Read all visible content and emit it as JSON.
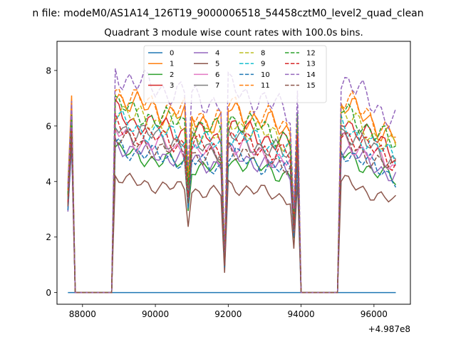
{
  "chart_data": {
    "type": "line",
    "suptitle": "n file: modeM0/AS1A14_126T19_9000006518_54458cztM0_level2_quad_clean",
    "title": "Quadrant 3 module wise count rates with 100.0s bins.",
    "xlabel": "",
    "ylabel": "",
    "x_offset_label": "+4.987e8",
    "xlim": [
      87300,
      97000
    ],
    "ylim": [
      -0.42,
      9.05
    ],
    "xticks": [
      88000,
      90000,
      92000,
      94000,
      96000
    ],
    "yticks": [
      0,
      2,
      4,
      6,
      8
    ],
    "grid": false,
    "legend": {
      "placement": "top-center",
      "ncol": 4
    },
    "x": {
      "start": 87600,
      "step": 100,
      "count": 91
    },
    "series": [
      {
        "name": "0",
        "color": "#1f77b4",
        "dash": "solid",
        "base": 0,
        "pulse": 6.6
      },
      {
        "name": "1",
        "color": "#ff7f0e",
        "dash": "solid",
        "base": 6.75,
        "pulse": 7.1
      },
      {
        "name": "2",
        "color": "#2ca02c",
        "dash": "solid",
        "base": 4.9,
        "pulse": 6.5
      },
      {
        "name": "3",
        "color": "#d62728",
        "dash": "solid",
        "base": 6.15,
        "pulse": 6.2
      },
      {
        "name": "4",
        "color": "#9467bd",
        "dash": "solid",
        "base": 5.1,
        "pulse": 5.3
      },
      {
        "name": "5",
        "color": "#8c564b",
        "dash": "solid",
        "base": 3.95,
        "pulse": 5.6
      },
      {
        "name": "6",
        "color": "#e377c2",
        "dash": "solid",
        "base": 5.45,
        "pulse": 6.0
      },
      {
        "name": "7",
        "color": "#7f7f7f",
        "dash": "solid",
        "base": 5.75,
        "pulse": 5.8
      },
      {
        "name": "8",
        "color": "#bcbd22",
        "dash": "dashed",
        "base": 6.3,
        "pulse": 6.3
      },
      {
        "name": "9",
        "color": "#17becf",
        "dash": "dashed",
        "base": 5.9,
        "pulse": 6.1
      },
      {
        "name": "10",
        "color": "#1f77b4",
        "dash": "dashed",
        "base": 5.05,
        "pulse": 5.4
      },
      {
        "name": "11",
        "color": "#ff7f0e",
        "dash": "dashed",
        "base": 6.9,
        "pulse": 6.7
      },
      {
        "name": "12",
        "color": "#2ca02c",
        "dash": "dashed",
        "base": 6.45,
        "pulse": 6.4
      },
      {
        "name": "13",
        "color": "#d62728",
        "dash": "dashed",
        "base": 5.7,
        "pulse": 5.9
      },
      {
        "name": "14",
        "color": "#9467bd",
        "dash": "dashed",
        "base": 7.55,
        "pulse": 6.9
      },
      {
        "name": "15",
        "color": "#8c564b",
        "dash": "dashed",
        "base": 5.35,
        "pulse": 5.7
      }
    ],
    "segments": [
      {
        "x_start": 88900,
        "x_end": 89400,
        "factor_start": 1.06,
        "factor_end": 1.0
      },
      {
        "x_start": 89500,
        "x_end": 91800,
        "factor_start": 1.0,
        "factor_end": 0.9
      },
      {
        "x_start": 92000,
        "x_end": 93700,
        "factor_start": 0.98,
        "factor_end": 0.86
      },
      {
        "x_start": 93900,
        "x_end": 93900,
        "factor_start": 0.95,
        "factor_end": 0.95
      },
      {
        "x_start": 95100,
        "x_end": 96600,
        "factor_start": 1.02,
        "factor_end": 0.82
      }
    ],
    "dips": [
      {
        "x": 90900,
        "factor": 0.6
      },
      {
        "x": 91900,
        "factor": 0.18
      },
      {
        "x": 93800,
        "factor": 0.4
      }
    ],
    "gaps": [
      {
        "x_start": 87800,
        "x_end": 88800
      },
      {
        "x_start": 94100,
        "x_end": 95000
      }
    ]
  }
}
